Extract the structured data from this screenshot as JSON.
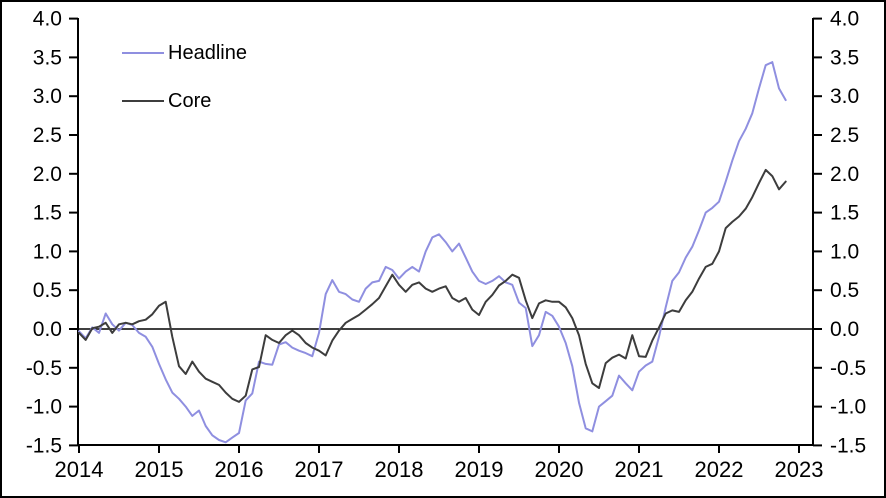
{
  "chart_data": {
    "type": "line",
    "title": "",
    "x_start": "2014-01",
    "x_end": "2022-11",
    "points_per_year": 12,
    "x_tick_labels": [
      "2014",
      "2015",
      "2016",
      "2017",
      "2018",
      "2019",
      "2020",
      "2021",
      "2022",
      "2023"
    ],
    "y_tick_labels": [
      "4.0",
      "3.5",
      "3.0",
      "2.5",
      "2.0",
      "1.5",
      "1.0",
      "0.5",
      "0.0",
      "-0.5",
      "-1.0",
      "-1.5"
    ],
    "ylim": [
      -1.5,
      4.0
    ],
    "y_tick_step": 0.5,
    "grid": false,
    "zero_line": true,
    "legend_position": "top-left",
    "axis_color": "#000000",
    "series": [
      {
        "name": "Headline",
        "color": "#8f8fe0",
        "values": [
          -0.03,
          -0.12,
          0.02,
          -0.05,
          0.2,
          0.06,
          -0.02,
          0.08,
          0.05,
          -0.05,
          -0.1,
          -0.23,
          -0.45,
          -0.65,
          -0.82,
          -0.9,
          -1.0,
          -1.12,
          -1.05,
          -1.25,
          -1.37,
          -1.43,
          -1.46,
          -1.4,
          -1.34,
          -0.92,
          -0.83,
          -0.42,
          -0.45,
          -0.46,
          -0.2,
          -0.17,
          -0.24,
          -0.28,
          -0.31,
          -0.35,
          -0.05,
          0.45,
          0.63,
          0.48,
          0.45,
          0.38,
          0.35,
          0.52,
          0.6,
          0.62,
          0.8,
          0.76,
          0.65,
          0.74,
          0.8,
          0.74,
          1.0,
          1.18,
          1.22,
          1.12,
          1.0,
          1.1,
          0.92,
          0.74,
          0.62,
          0.58,
          0.62,
          0.68,
          0.6,
          0.57,
          0.34,
          0.27,
          -0.22,
          -0.08,
          0.22,
          0.17,
          0.03,
          -0.18,
          -0.48,
          -0.95,
          -1.28,
          -1.32,
          -1.0,
          -0.93,
          -0.86,
          -0.6,
          -0.7,
          -0.79,
          -0.55,
          -0.47,
          -0.42,
          -0.1,
          0.28,
          0.62,
          0.73,
          0.92,
          1.06,
          1.27,
          1.5,
          1.56,
          1.64,
          1.9,
          2.17,
          2.42,
          2.58,
          2.78,
          3.1,
          3.4,
          3.44,
          3.1,
          2.95
        ]
      },
      {
        "name": "Core",
        "color": "#3d3d3d",
        "values": [
          -0.05,
          -0.14,
          0.01,
          0.03,
          0.08,
          -0.05,
          0.06,
          0.08,
          0.06,
          0.1,
          0.12,
          0.19,
          0.3,
          0.35,
          -0.1,
          -0.48,
          -0.58,
          -0.42,
          -0.55,
          -0.64,
          -0.68,
          -0.72,
          -0.82,
          -0.9,
          -0.94,
          -0.86,
          -0.52,
          -0.49,
          -0.08,
          -0.14,
          -0.18,
          -0.08,
          -0.02,
          -0.08,
          -0.18,
          -0.24,
          -0.28,
          -0.34,
          -0.15,
          -0.02,
          0.08,
          0.13,
          0.18,
          0.25,
          0.32,
          0.4,
          0.55,
          0.7,
          0.57,
          0.48,
          0.57,
          0.6,
          0.52,
          0.48,
          0.52,
          0.55,
          0.4,
          0.35,
          0.4,
          0.25,
          0.18,
          0.35,
          0.44,
          0.56,
          0.62,
          0.7,
          0.66,
          0.37,
          0.14,
          0.33,
          0.37,
          0.35,
          0.35,
          0.28,
          0.14,
          -0.08,
          -0.45,
          -0.7,
          -0.76,
          -0.44,
          -0.37,
          -0.33,
          -0.38,
          -0.08,
          -0.35,
          -0.36,
          -0.15,
          0.02,
          0.2,
          0.24,
          0.22,
          0.37,
          0.48,
          0.65,
          0.8,
          0.84,
          1.0,
          1.3,
          1.38,
          1.45,
          1.55,
          1.7,
          1.88,
          2.05,
          1.97,
          1.8,
          1.9
        ]
      }
    ]
  }
}
